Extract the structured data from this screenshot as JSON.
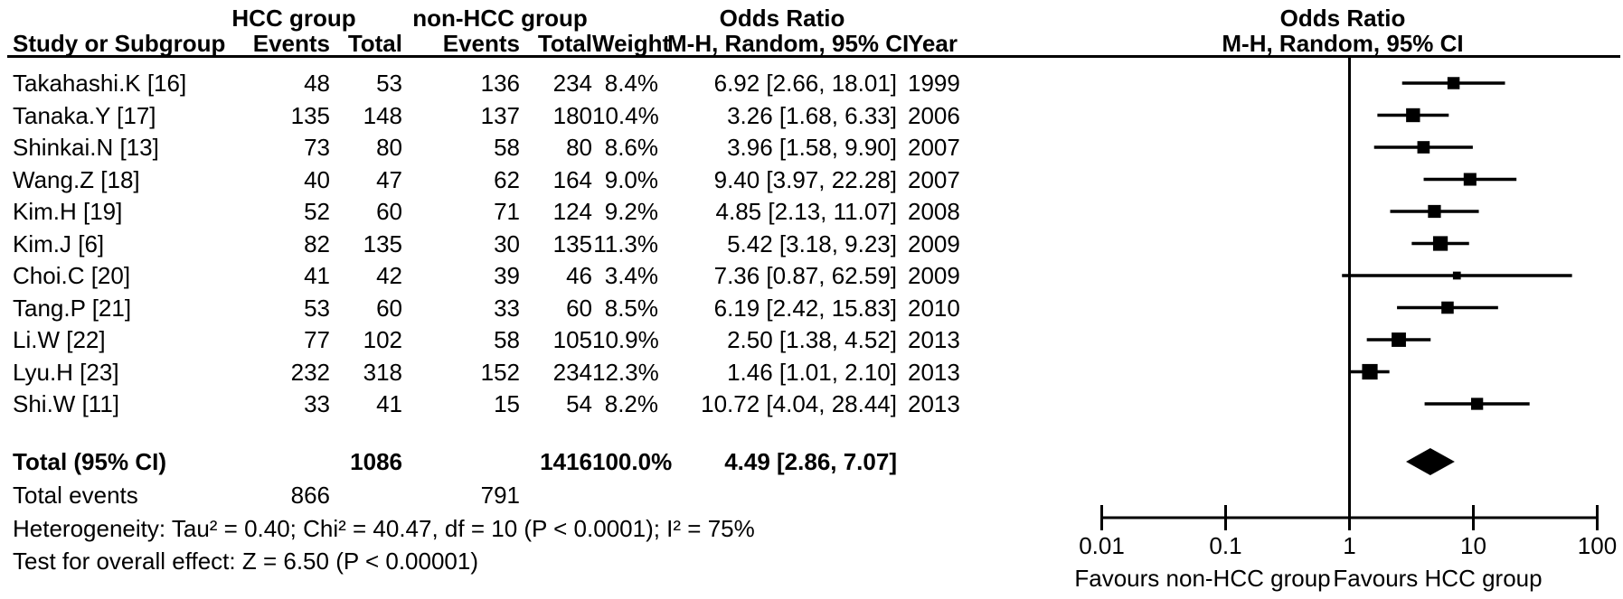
{
  "colors": {
    "ink": "#000000",
    "background": "#ffffff"
  },
  "headers": {
    "group1": "HCC group",
    "group2": "non-HCC group",
    "or_col": "Odds Ratio",
    "or_plot": "Odds Ratio",
    "study": "Study or Subgroup",
    "events1": "Events",
    "total1": "Total",
    "events2": "Events",
    "total2": "Total",
    "weight": "Weight",
    "method_col": "M-H, Random, 95% CI",
    "year": "Year",
    "method_plot": "M-H, Random, 95% CI"
  },
  "footer": {
    "pooled_label": "Total (95% CI)",
    "total_events_label": "Total events",
    "heterogeneity": "Heterogeneity: Tau² = 0.40; Chi² = 40.47, df = 10 (P < 0.0001); I² = 75%",
    "overall_effect": "Test for overall effect: Z = 6.50 (P < 0.00001)"
  },
  "chart_data": {
    "type": "forest",
    "title": "Odds Ratio",
    "effect_measure": "M-H, Random, 95% CI",
    "x_scale": "log10",
    "xlim": [
      0.01,
      100
    ],
    "x_tick_values": [
      0.01,
      0.1,
      1,
      10,
      100
    ],
    "x_tick_labels": [
      "0.01",
      "0.1",
      "1",
      "10",
      "100"
    ],
    "null_line": 1,
    "favours_left": "Favours non-HCC group",
    "favours_right": "Favours HCC group",
    "studies": [
      {
        "name": "Takahashi.K [16]",
        "hcc_events": "48",
        "hcc_total": "53",
        "non_hcc_events": "136",
        "non_hcc_total": "234",
        "weight": "8.4%",
        "weight_pct": 8.4,
        "ci_text": "6.92 [2.66, 18.01]",
        "year": "1999",
        "or": 6.92,
        "ci_low": 2.66,
        "ci_high": 18.01
      },
      {
        "name": "Tanaka.Y [17]",
        "hcc_events": "135",
        "hcc_total": "148",
        "non_hcc_events": "137",
        "non_hcc_total": "180",
        "weight": "10.4%",
        "weight_pct": 10.4,
        "ci_text": "3.26 [1.68, 6.33]",
        "year": "2006",
        "or": 3.26,
        "ci_low": 1.68,
        "ci_high": 6.33
      },
      {
        "name": "Shinkai.N [13]",
        "hcc_events": "73",
        "hcc_total": "80",
        "non_hcc_events": "58",
        "non_hcc_total": "80",
        "weight": "8.6%",
        "weight_pct": 8.6,
        "ci_text": "3.96 [1.58, 9.90]",
        "year": "2007",
        "or": 3.96,
        "ci_low": 1.58,
        "ci_high": 9.9
      },
      {
        "name": "Wang.Z [18]",
        "hcc_events": "40",
        "hcc_total": "47",
        "non_hcc_events": "62",
        "non_hcc_total": "164",
        "weight": "9.0%",
        "weight_pct": 9.0,
        "ci_text": "9.40 [3.97, 22.28]",
        "year": "2007",
        "or": 9.4,
        "ci_low": 3.97,
        "ci_high": 22.28
      },
      {
        "name": "Kim.H [19]",
        "hcc_events": "52",
        "hcc_total": "60",
        "non_hcc_events": "71",
        "non_hcc_total": "124",
        "weight": "9.2%",
        "weight_pct": 9.2,
        "ci_text": "4.85 [2.13, 11.07]",
        "year": "2008",
        "or": 4.85,
        "ci_low": 2.13,
        "ci_high": 11.07
      },
      {
        "name": "Kim.J [6]",
        "hcc_events": "82",
        "hcc_total": "135",
        "non_hcc_events": "30",
        "non_hcc_total": "135",
        "weight": "11.3%",
        "weight_pct": 11.3,
        "ci_text": "5.42 [3.18, 9.23]",
        "year": "2009",
        "or": 5.42,
        "ci_low": 3.18,
        "ci_high": 9.23
      },
      {
        "name": "Choi.C [20]",
        "hcc_events": "41",
        "hcc_total": "42",
        "non_hcc_events": "39",
        "non_hcc_total": "46",
        "weight": "3.4%",
        "weight_pct": 3.4,
        "ci_text": "7.36 [0.87, 62.59]",
        "year": "2009",
        "or": 7.36,
        "ci_low": 0.87,
        "ci_high": 62.59
      },
      {
        "name": "Tang.P [21]",
        "hcc_events": "53",
        "hcc_total": "60",
        "non_hcc_events": "33",
        "non_hcc_total": "60",
        "weight": "8.5%",
        "weight_pct": 8.5,
        "ci_text": "6.19 [2.42, 15.83]",
        "year": "2010",
        "or": 6.19,
        "ci_low": 2.42,
        "ci_high": 15.83
      },
      {
        "name": "Li.W [22]",
        "hcc_events": "77",
        "hcc_total": "102",
        "non_hcc_events": "58",
        "non_hcc_total": "105",
        "weight": "10.9%",
        "weight_pct": 10.9,
        "ci_text": "2.50 [1.38, 4.52]",
        "year": "2013",
        "or": 2.5,
        "ci_low": 1.38,
        "ci_high": 4.52
      },
      {
        "name": "Lyu.H [23]",
        "hcc_events": "232",
        "hcc_total": "318",
        "non_hcc_events": "152",
        "non_hcc_total": "234",
        "weight": "12.3%",
        "weight_pct": 12.3,
        "ci_text": "1.46 [1.01, 2.10]",
        "year": "2013",
        "or": 1.46,
        "ci_low": 1.01,
        "ci_high": 2.1
      },
      {
        "name": "Shi.W [11]",
        "hcc_events": "33",
        "hcc_total": "41",
        "non_hcc_events": "15",
        "non_hcc_total": "54",
        "weight": "8.2%",
        "weight_pct": 8.2,
        "ci_text": "10.72 [4.04, 28.44]",
        "year": "2013",
        "or": 10.72,
        "ci_low": 4.04,
        "ci_high": 28.44
      }
    ],
    "pooled": {
      "hcc_total": "1086",
      "non_hcc_total": "1416",
      "weight": "100.0%",
      "ci_text": "4.49 [2.86, 7.07]",
      "or": 4.49,
      "ci_low": 2.86,
      "ci_high": 7.07
    },
    "total_events": {
      "hcc": "866",
      "non_hcc": "791"
    }
  }
}
